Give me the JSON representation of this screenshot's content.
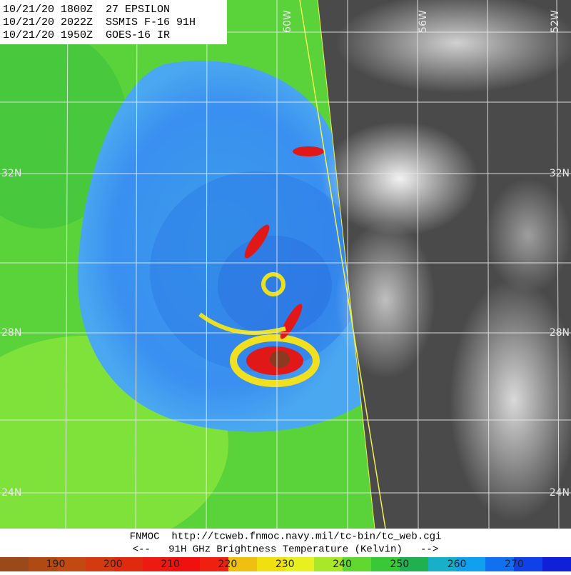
{
  "header": {
    "lines": [
      "10/21/20 1800Z  27 EPSILON",
      "10/21/20 2022Z  SSMIS F-16 91H",
      "10/21/20 1950Z  GOES-16 IR"
    ]
  },
  "grid": {
    "lon_labels": [
      "60W",
      "56W",
      "52W"
    ],
    "lat_labels": [
      "32N",
      "28N",
      "24N"
    ]
  },
  "footer": {
    "lines": [
      "FNMOC  http://tcweb.fnmoc.navy.mil/tc-bin/tc_web.cgi",
      "<--   91H GHz Brightness Temperature (Kelvin)   -->"
    ]
  },
  "colorbar": {
    "ticks": [
      190,
      200,
      210,
      220,
      230,
      240,
      250,
      260,
      270
    ]
  }
}
